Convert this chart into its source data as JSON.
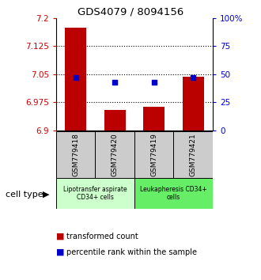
{
  "title": "GDS4079 / 8094156",
  "samples": [
    "GSM779418",
    "GSM779420",
    "GSM779419",
    "GSM779421"
  ],
  "red_values": [
    7.175,
    6.955,
    6.963,
    7.043
  ],
  "blue_values": [
    47,
    43,
    43,
    47
  ],
  "ylim_left": [
    6.9,
    7.2
  ],
  "ylim_right": [
    0,
    100
  ],
  "yticks_left": [
    6.9,
    6.975,
    7.05,
    7.125,
    7.2
  ],
  "yticks_right": [
    0,
    25,
    50,
    75,
    100
  ],
  "ytick_labels_left": [
    "6.9",
    "6.975",
    "7.05",
    "7.125",
    "7.2"
  ],
  "ytick_labels_right": [
    "0",
    "25",
    "50",
    "75",
    "100%"
  ],
  "bar_color": "#bb0000",
  "scatter_color": "#0000cc",
  "bar_width": 0.55,
  "cell_type_label": "cell type",
  "group1_label": "Lipotransfer aspirate\nCD34+ cells",
  "group2_label": "Leukapheresis CD34+\ncells",
  "group1_color": "#ccffcc",
  "group2_color": "#66ee66",
  "sample_bg_color": "#cccccc",
  "legend_red_label": "transformed count",
  "legend_blue_label": "percentile rank within the sample"
}
